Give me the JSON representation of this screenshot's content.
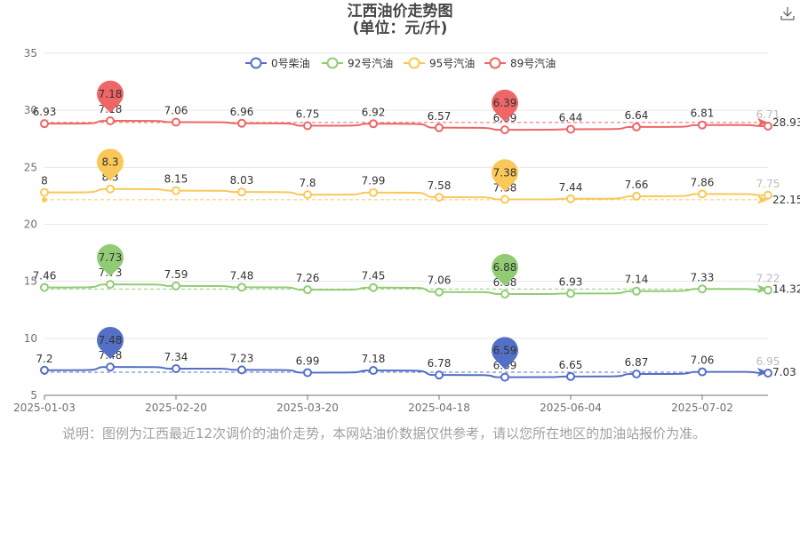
{
  "title": {
    "line1": "江西油价走势图",
    "line2": "(单位：元/升)"
  },
  "footnote": "说明：图例为江西最近12次调价的油价走势，本网站油价数据仅供参考，请以您所在地区的加油站报价为准。",
  "toolbar": {
    "icon": "download-icon"
  },
  "chart_data": {
    "type": "line",
    "title": "江西油价走势图",
    "subtitle": "(单位：元/升)",
    "xlabel": "",
    "ylabel": "",
    "ylim": [
      5,
      35
    ],
    "y_ticks": [
      "5",
      "10",
      "15",
      "20",
      "25",
      "30",
      "35"
    ],
    "x_tick_labels": [
      "2025-01-03",
      "2025-02-20",
      "2025-03-20",
      "2025-04-18",
      "2025-06-04",
      "2025-07-02"
    ],
    "grid": true,
    "legend_position": "top-center",
    "series": [
      {
        "name": "0号柴油",
        "color": "#5470c6",
        "labels": [
          "7.2",
          "7.48",
          "7.34",
          "7.23",
          "6.99",
          "7.18",
          "6.78",
          "6.59",
          "6.65",
          "6.87",
          "7.06",
          "6.95"
        ],
        "max": {
          "label": "7.48",
          "index": 1
        },
        "min": {
          "label": "6.59",
          "index": 7
        },
        "average": "7.03"
      },
      {
        "name": "92号汽油",
        "color": "#91cc75",
        "labels": [
          "7.46",
          "7.73",
          "7.59",
          "7.48",
          "7.26",
          "7.45",
          "7.06",
          "6.88",
          "6.93",
          "7.14",
          "7.33",
          "7.22"
        ],
        "max": {
          "label": "7.73",
          "index": 1
        },
        "min": {
          "label": "6.88",
          "index": 7
        },
        "average": "14.32"
      },
      {
        "name": "95号汽油",
        "color": "#fac858",
        "labels": [
          "8",
          "8.3",
          "8.15",
          "8.03",
          "7.8",
          "7.99",
          "7.58",
          "7.38",
          "7.44",
          "7.66",
          "7.86",
          "7.75"
        ],
        "max": {
          "label": "8.3",
          "index": 1
        },
        "min": {
          "label": "7.38",
          "index": 7
        },
        "average": "22.15"
      },
      {
        "name": "89号汽油",
        "color": "#ee6666",
        "labels": [
          "6.93",
          "7.18",
          "7.06",
          "6.96",
          "6.75",
          "6.92",
          "6.57",
          "6.39",
          "6.44",
          "6.64",
          "6.81",
          "6.71"
        ],
        "max": {
          "label": "7.18",
          "index": 1
        },
        "min": {
          "label": "6.39",
          "index": 7
        },
        "average": "28.93"
      }
    ]
  }
}
